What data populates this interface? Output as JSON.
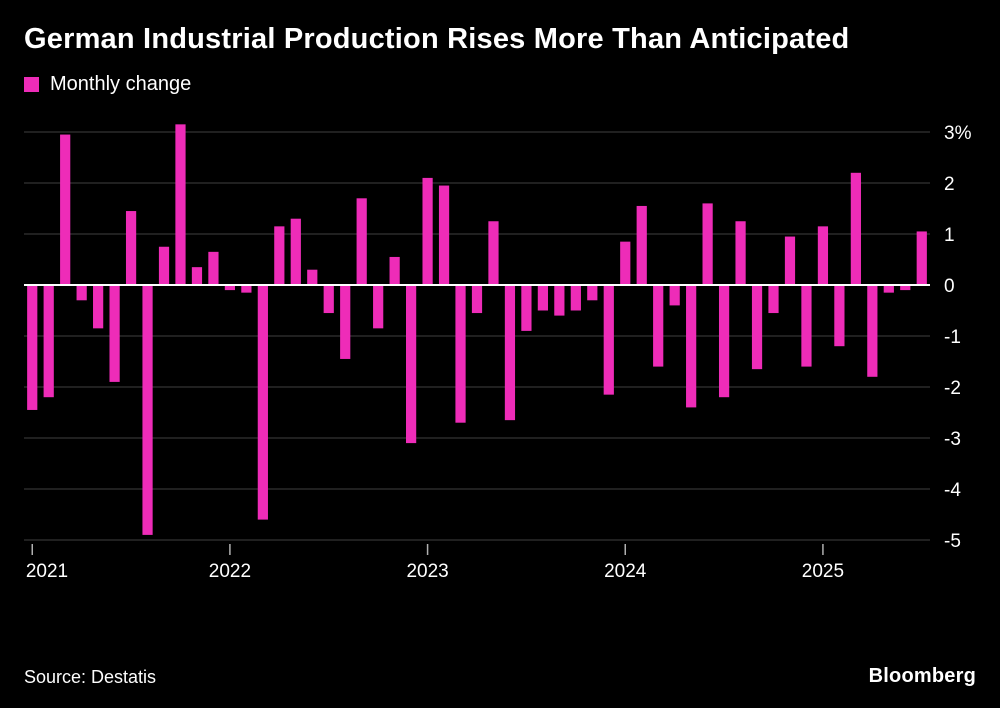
{
  "header": {
    "title": "German Industrial Production Rises More Than Anticipated",
    "legend": {
      "label": "Monthly change"
    }
  },
  "chart_data": {
    "type": "bar",
    "title": "German Industrial Production Rises More Than Anticipated",
    "series_name": "Monthly change",
    "xlabel": "",
    "ylabel": "Monthly change (%)",
    "ylim": [
      -5,
      3
    ],
    "y_ticks": [
      3,
      2,
      1,
      0,
      -1,
      -2,
      -3,
      -4,
      -5
    ],
    "y_tick_labels": [
      "3%",
      "2",
      "1",
      "0",
      "-1",
      "-2",
      "-3",
      "-4",
      "-5"
    ],
    "x_tick_labels": [
      "2021",
      "2022",
      "2023",
      "2024",
      "2025"
    ],
    "grid": "horizontal",
    "legend_position": "top-left",
    "bar_color": "#ee2cb8",
    "grid_color": "#3f3f3f",
    "zero_line_color": "#ffffff",
    "tick_color": "#b0b0b0",
    "background": "#000000",
    "x": [
      "2021-01",
      "2021-02",
      "2021-03",
      "2021-04",
      "2021-05",
      "2021-06",
      "2021-07",
      "2021-08",
      "2021-09",
      "2021-10",
      "2021-11",
      "2021-12",
      "2022-01",
      "2022-02",
      "2022-03",
      "2022-04",
      "2022-05",
      "2022-06",
      "2022-07",
      "2022-08",
      "2022-09",
      "2022-10",
      "2022-11",
      "2022-12",
      "2023-01",
      "2023-02",
      "2023-03",
      "2023-04",
      "2023-05",
      "2023-06",
      "2023-07",
      "2023-08",
      "2023-09",
      "2023-10",
      "2023-11",
      "2023-12",
      "2024-01",
      "2024-02",
      "2024-03",
      "2024-04",
      "2024-05",
      "2024-06",
      "2024-07",
      "2024-08",
      "2024-09",
      "2024-10",
      "2024-11",
      "2024-12",
      "2025-01",
      "2025-02",
      "2025-03",
      "2025-04",
      "2025-05",
      "2025-06",
      "2025-07"
    ],
    "values": [
      -2.45,
      -2.2,
      2.95,
      -0.3,
      -0.85,
      -1.9,
      1.45,
      -4.9,
      0.75,
      3.15,
      0.35,
      0.65,
      -0.1,
      -0.15,
      -4.6,
      1.15,
      1.3,
      0.3,
      -0.55,
      -1.45,
      1.7,
      -0.85,
      0.55,
      -3.1,
      2.1,
      1.95,
      -2.7,
      -0.55,
      1.25,
      -2.65,
      -0.9,
      -0.5,
      -0.6,
      -0.5,
      -0.3,
      -2.15,
      0.85,
      1.55,
      -1.6,
      -0.4,
      -2.4,
      1.6,
      -2.2,
      1.25,
      -1.65,
      -0.55,
      0.95,
      -1.6,
      1.15,
      -1.2,
      2.2,
      -1.8,
      -0.15,
      -0.1,
      1.05
    ]
  },
  "footer": {
    "source": "Source: Destatis",
    "brand": "Bloomberg"
  }
}
